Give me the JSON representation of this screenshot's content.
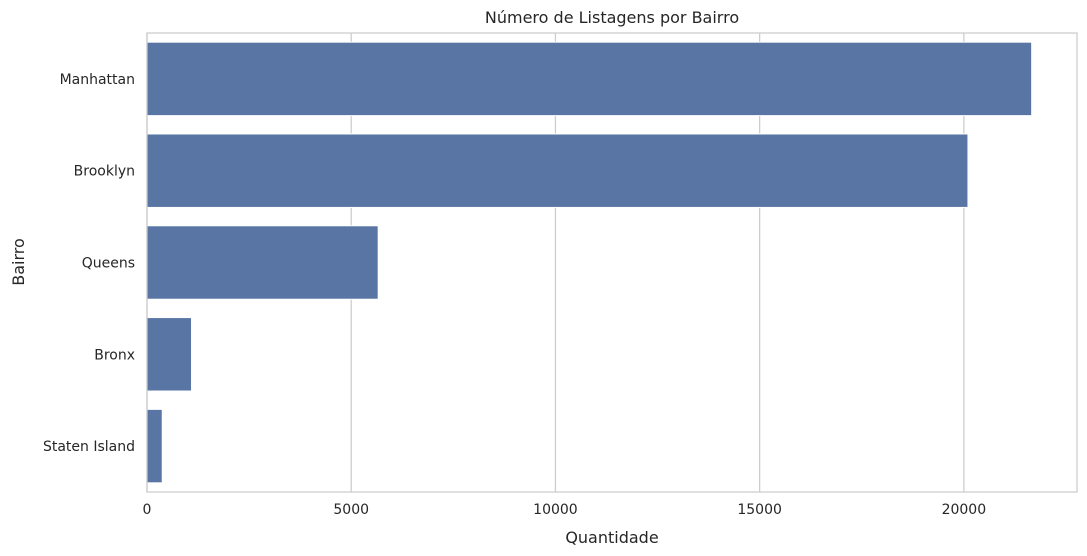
{
  "chart_data": {
    "type": "bar",
    "orientation": "horizontal",
    "title": "Número de Listagens por Bairro",
    "xlabel": "Quantidade",
    "ylabel": "Bairro",
    "categories": [
      "Manhattan",
      "Brooklyn",
      "Queens",
      "Bronx",
      "Staten Island"
    ],
    "values": [
      21660,
      20100,
      5660,
      1090,
      373
    ],
    "xlim": [
      0,
      22770
    ],
    "xticks": [
      0,
      5000,
      10000,
      15000,
      20000
    ],
    "grid": "vertical",
    "bar_color": "#5875a4",
    "grid_color": "#cccccc"
  }
}
